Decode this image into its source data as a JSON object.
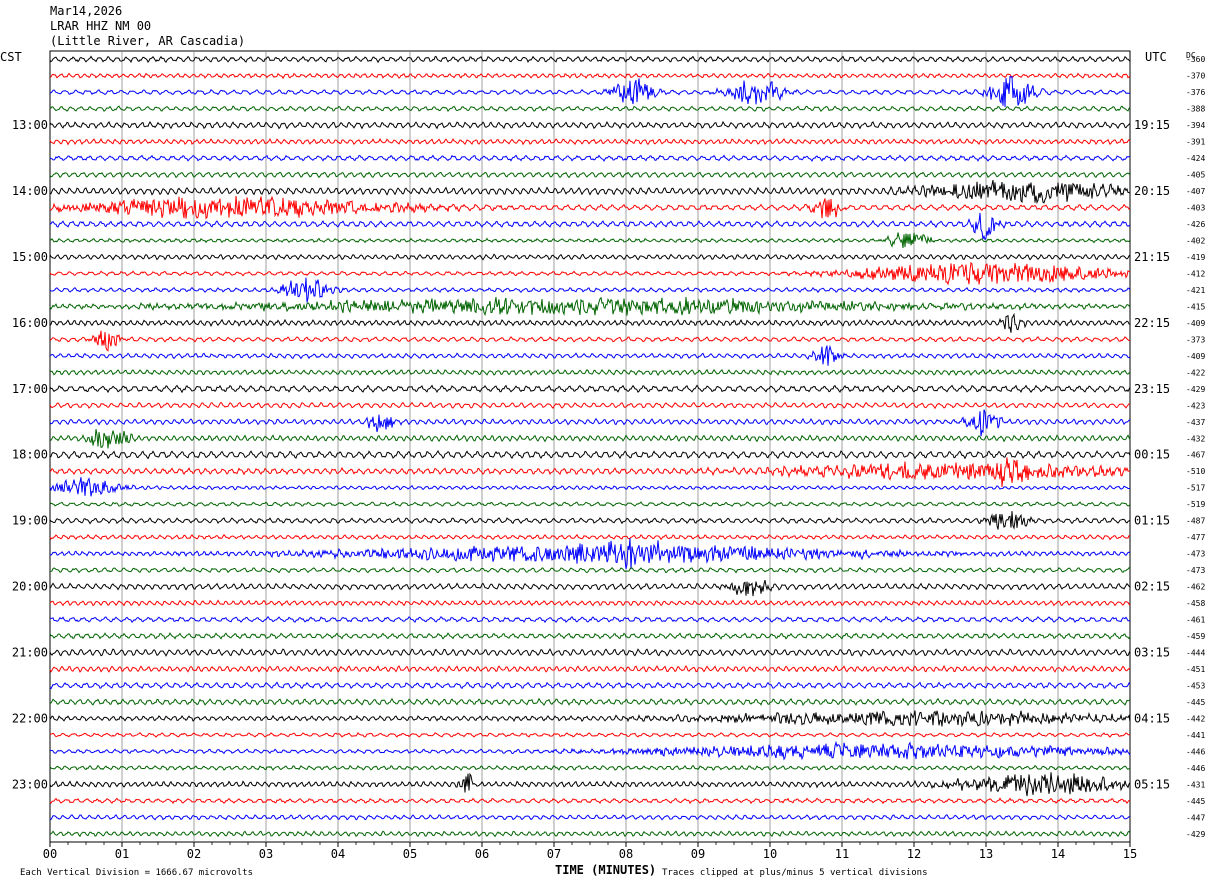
{
  "header": {
    "date": "Mar14,2026",
    "station": "LRAR HHZ NM 00",
    "location": "(Little River, AR Cascadia)"
  },
  "chart_data": {
    "type": "line",
    "title": "",
    "left_timezone": "CST",
    "right_timezone": "UTC",
    "dc_label": "DC",
    "left_hour_labels": [
      "13:00",
      "14:00",
      "15:00",
      "16:00",
      "17:00",
      "18:00",
      "19:00",
      "20:00",
      "21:00",
      "22:00",
      "23:00"
    ],
    "right_hour_labels": [
      "19:15",
      "20:15",
      "21:15",
      "22:15",
      "23:15",
      "00:15",
      "01:15",
      "02:15",
      "03:15",
      "04:15",
      "05:15"
    ],
    "first_hour_label_row": 4,
    "rows_per_hour": 4,
    "row_colors": [
      "#000000",
      "#ff0000",
      "#0000ff",
      "#006400"
    ],
    "dc_offsets": [
      -360,
      -370,
      -376,
      -388,
      -394,
      -391,
      -424,
      -405,
      -407,
      -403,
      -426,
      -402,
      -419,
      -412,
      -421,
      -415,
      -409,
      -373,
      -409,
      -422,
      -429,
      -423,
      -437,
      -432,
      -467,
      -510,
      -517,
      -519,
      -487,
      -477,
      -473,
      -473,
      -462,
      -458,
      -461,
      -459,
      -444,
      -451,
      -453,
      -445,
      -442,
      -441,
      -446,
      -446,
      -431,
      -445,
      -447,
      -429
    ],
    "x_ticks": [
      "00",
      "01",
      "02",
      "03",
      "04",
      "05",
      "06",
      "07",
      "08",
      "09",
      "10",
      "11",
      "12",
      "13",
      "14",
      "15"
    ],
    "xlim": [
      0,
      15
    ],
    "xlabel": "TIME (MINUTES)",
    "scale_note": "Each Vertical Division = 1666.67 microvolts",
    "clip_note": "Traces clipped at plus/minus 5 vertical divisions",
    "grid": true,
    "events": [
      {
        "row": 2,
        "minute": 7.8,
        "dur": 0.6,
        "amp": 1.6
      },
      {
        "row": 2,
        "minute": 9.4,
        "dur": 0.8,
        "amp": 1.6
      },
      {
        "row": 2,
        "minute": 13.0,
        "dur": 0.7,
        "amp": 1.8
      },
      {
        "row": 8,
        "minute": 12.0,
        "dur": 3.0,
        "amp": 1.1
      },
      {
        "row": 9,
        "minute": 0.0,
        "dur": 5.0,
        "amp": 1.1
      },
      {
        "row": 9,
        "minute": 10.6,
        "dur": 0.4,
        "amp": 1.5
      },
      {
        "row": 10,
        "minute": 12.8,
        "dur": 0.4,
        "amp": 1.6
      },
      {
        "row": 11,
        "minute": 11.6,
        "dur": 0.6,
        "amp": 1.1
      },
      {
        "row": 13,
        "minute": 11.0,
        "dur": 4.0,
        "amp": 1.1
      },
      {
        "row": 14,
        "minute": 3.2,
        "dur": 0.7,
        "amp": 1.4
      },
      {
        "row": 15,
        "minute": 2.4,
        "dur": 10.0,
        "amp": 0.9
      },
      {
        "row": 16,
        "minute": 13.2,
        "dur": 0.3,
        "amp": 1.0
      },
      {
        "row": 17,
        "minute": 0.6,
        "dur": 0.4,
        "amp": 1.2
      },
      {
        "row": 18,
        "minute": 10.6,
        "dur": 0.4,
        "amp": 1.2
      },
      {
        "row": 22,
        "minute": 4.4,
        "dur": 0.4,
        "amp": 1.1
      },
      {
        "row": 22,
        "minute": 12.7,
        "dur": 0.5,
        "amp": 1.4
      },
      {
        "row": 23,
        "minute": 0.5,
        "dur": 0.6,
        "amp": 1.2
      },
      {
        "row": 25,
        "minute": 10.0,
        "dur": 5.0,
        "amp": 0.9
      },
      {
        "row": 25,
        "minute": 13.1,
        "dur": 0.4,
        "amp": 1.6
      },
      {
        "row": 26,
        "minute": 0.0,
        "dur": 1.0,
        "amp": 1.0
      },
      {
        "row": 28,
        "minute": 13.0,
        "dur": 0.6,
        "amp": 1.0
      },
      {
        "row": 30,
        "minute": 4.0,
        "dur": 7.5,
        "amp": 1.0
      },
      {
        "row": 30,
        "minute": 7.7,
        "dur": 0.8,
        "amp": 1.6
      },
      {
        "row": 32,
        "minute": 9.4,
        "dur": 0.6,
        "amp": 1.0
      },
      {
        "row": 40,
        "minute": 9.0,
        "dur": 6.0,
        "amp": 0.8
      },
      {
        "row": 42,
        "minute": 8.0,
        "dur": 7.0,
        "amp": 0.8
      },
      {
        "row": 44,
        "minute": 5.7,
        "dur": 0.2,
        "amp": 1.6
      },
      {
        "row": 44,
        "minute": 12.5,
        "dur": 2.5,
        "amp": 1.2
      }
    ]
  }
}
